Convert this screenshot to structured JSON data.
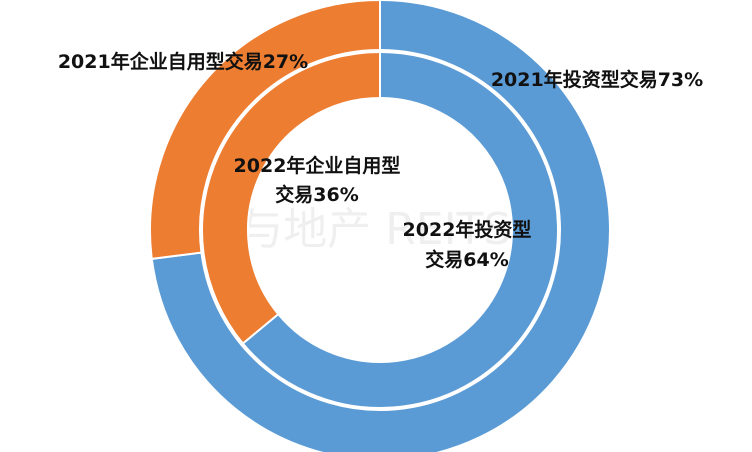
{
  "chart_data": {
    "type": "doughnut",
    "rings": [
      {
        "name": "2021",
        "segments": [
          {
            "label": "2021年投资型交易73%",
            "value": 73,
            "color": "#5B9BD5"
          },
          {
            "label": "2021年企业自用型交易27%",
            "value": 27,
            "color": "#ED7D31"
          }
        ]
      },
      {
        "name": "2022",
        "segments": [
          {
            "label_lines": [
              "2022年投资型",
              "交易64%"
            ],
            "value": 64,
            "color": "#5B9BD5"
          },
          {
            "label_lines": [
              "2022年企业自用型",
              "交易36%"
            ],
            "value": 36,
            "color": "#ED7D31"
          }
        ]
      }
    ]
  },
  "watermark": "投资与地产 REITSWIN"
}
